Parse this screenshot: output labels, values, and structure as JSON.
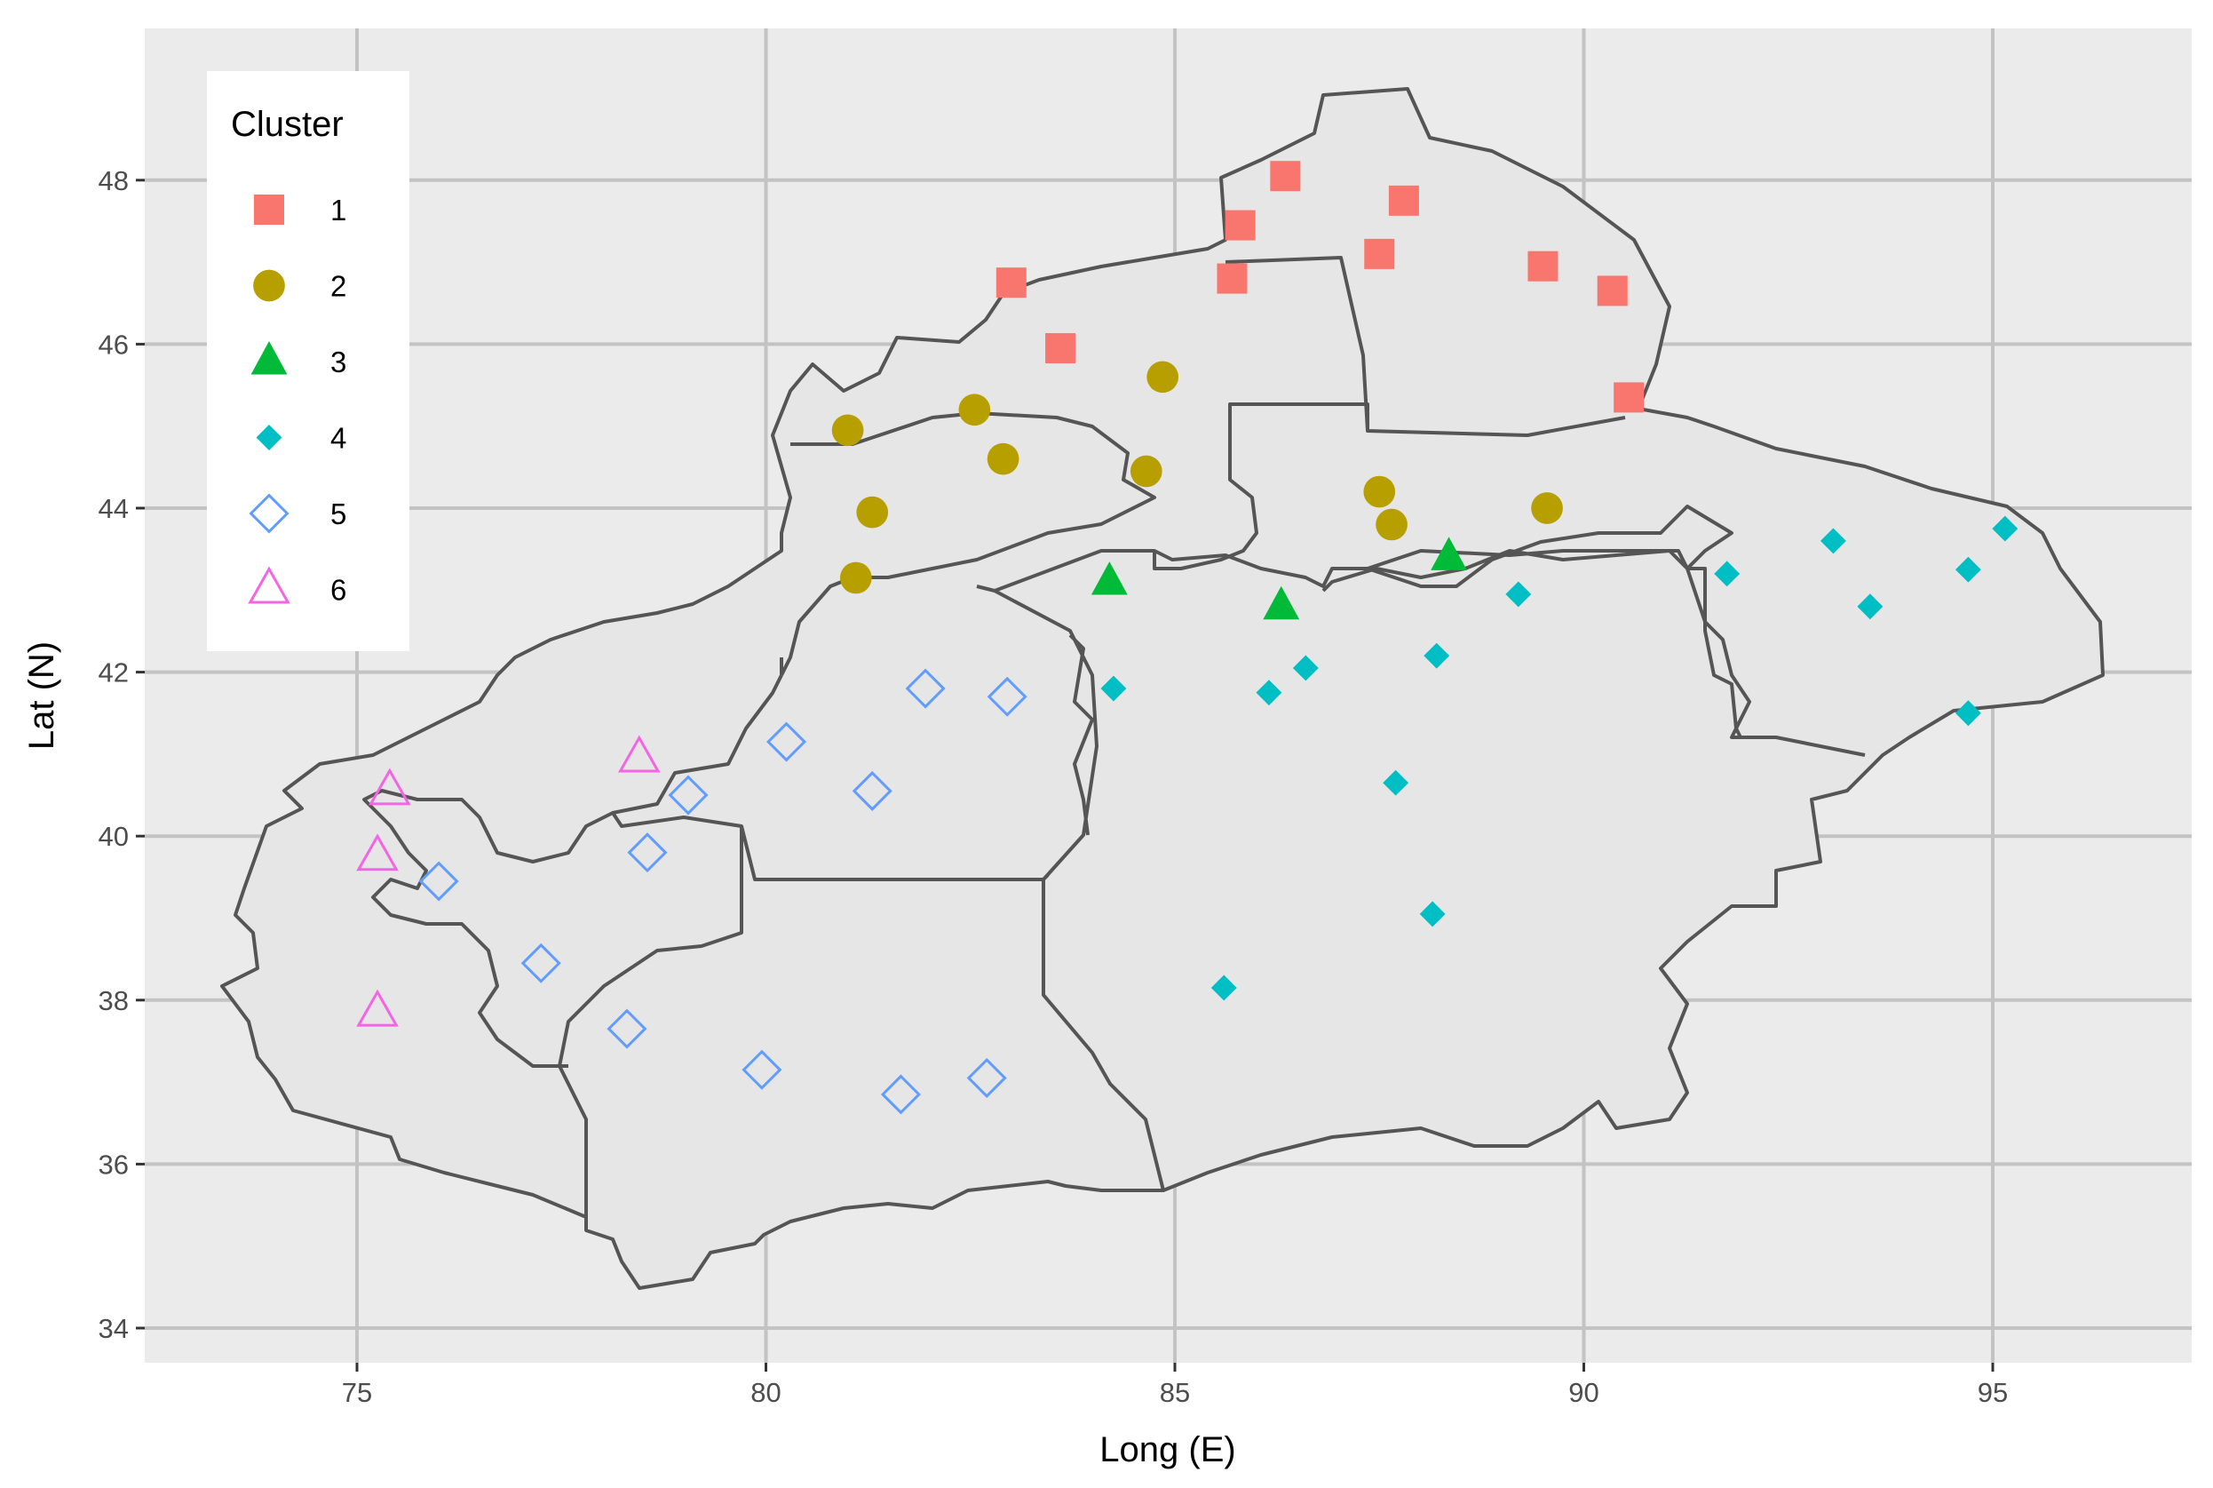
{
  "chart_data": {
    "type": "scatter",
    "xlabel": "Long (E)",
    "ylabel": "Lat (N)",
    "xlim": [
      72.5,
      97.5
    ],
    "ylim": [
      33.7,
      49.9
    ],
    "x_ticks": [
      75,
      80,
      85,
      90,
      95
    ],
    "y_ticks": [
      34,
      36,
      38,
      40,
      42,
      44,
      46,
      48
    ],
    "grid": true,
    "panel_color": "#ebebeb",
    "region_fill": "#e6e6e6",
    "region_stroke": "#555555",
    "legend": {
      "title": "Cluster",
      "position": "top-left"
    },
    "series": [
      {
        "name": "1",
        "shape": "filled-square",
        "color": "#F8766D",
        "x": [
          83.0,
          83.6,
          85.7,
          85.8,
          86.35,
          87.5,
          87.8,
          89.5,
          90.35,
          90.55
        ],
        "y": [
          46.75,
          45.95,
          46.8,
          47.45,
          48.05,
          47.1,
          47.75,
          46.95,
          46.65,
          45.35
        ]
      },
      {
        "name": "2",
        "shape": "filled-circle",
        "color": "#B79F00",
        "x": [
          81.0,
          81.3,
          81.1,
          82.55,
          82.9,
          84.85,
          84.65,
          87.5,
          87.65,
          89.55
        ],
        "y": [
          44.95,
          43.95,
          43.15,
          45.2,
          44.6,
          45.6,
          44.45,
          44.2,
          43.8,
          44.0
        ]
      },
      {
        "name": "3",
        "shape": "filled-triangle",
        "color": "#00BA38",
        "x": [
          84.2,
          86.3,
          88.35
        ],
        "y": [
          43.1,
          42.8,
          43.4
        ]
      },
      {
        "name": "4",
        "shape": "filled-diamond",
        "color": "#00BFC4",
        "x": [
          84.25,
          86.15,
          86.6,
          87.7,
          88.2,
          89.2,
          88.15,
          85.6,
          91.75,
          93.05,
          93.5,
          94.7,
          95.15,
          94.7
        ],
        "y": [
          41.8,
          41.75,
          42.05,
          40.65,
          42.2,
          42.95,
          39.05,
          38.15,
          43.2,
          43.6,
          42.8,
          43.25,
          43.75,
          41.5
        ]
      },
      {
        "name": "5",
        "shape": "open-diamond",
        "color": "#619CFF",
        "x": [
          76.0,
          77.25,
          78.3,
          78.55,
          79.05,
          80.25,
          81.3,
          81.95,
          82.95,
          79.95,
          81.65,
          82.7
        ],
        "y": [
          39.45,
          38.45,
          37.65,
          39.8,
          40.5,
          41.15,
          40.55,
          41.8,
          41.7,
          37.15,
          36.85,
          37.05
        ]
      },
      {
        "name": "6",
        "shape": "open-triangle",
        "color": "#F564E3",
        "x": [
          75.4,
          75.25,
          78.45,
          75.25
        ],
        "y": [
          40.55,
          39.75,
          40.95,
          37.85
        ]
      }
    ]
  }
}
